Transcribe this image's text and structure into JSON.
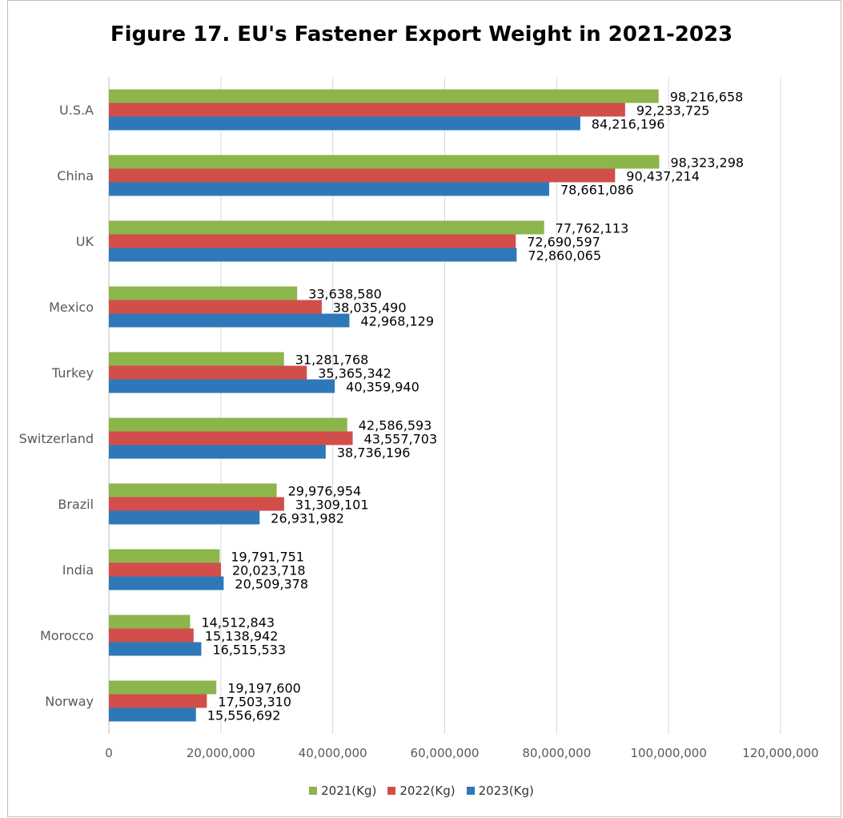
{
  "chart_data": {
    "type": "bar",
    "orientation": "horizontal",
    "title": "Figure 17. EU's Fastener Export Weight in 2021-2023",
    "categories": [
      "U.S.A",
      "China",
      "UK",
      "Mexico",
      "Turkey",
      "Switzerland",
      "Brazil",
      "India",
      "Morocco",
      "Norway"
    ],
    "series": [
      {
        "name": "2021(Kg)",
        "color": "#8cb54c",
        "values": [
          98216658,
          98323298,
          77762113,
          33638580,
          31281768,
          42586593,
          29976954,
          19791751,
          14512843,
          19197600
        ]
      },
      {
        "name": "2022(Kg)",
        "color": "#d24e4b",
        "values": [
          92233725,
          90437214,
          72690597,
          38035490,
          35365342,
          43557703,
          31309101,
          20023718,
          15138942,
          17503310
        ]
      },
      {
        "name": "2023(Kg)",
        "color": "#2e78b8",
        "values": [
          84216196,
          78661086,
          72860065,
          42968129,
          40359940,
          38736196,
          26931982,
          20509378,
          16515533,
          15556692
        ]
      }
    ],
    "xlim": [
      0,
      120000000
    ],
    "x_ticks": [
      "0",
      "20,000,000",
      "40,000,000",
      "60,000,000",
      "80,000,000",
      "100,000,000",
      "120,000,000"
    ],
    "grid": true,
    "legend_position": "bottom",
    "data_labels": true
  }
}
